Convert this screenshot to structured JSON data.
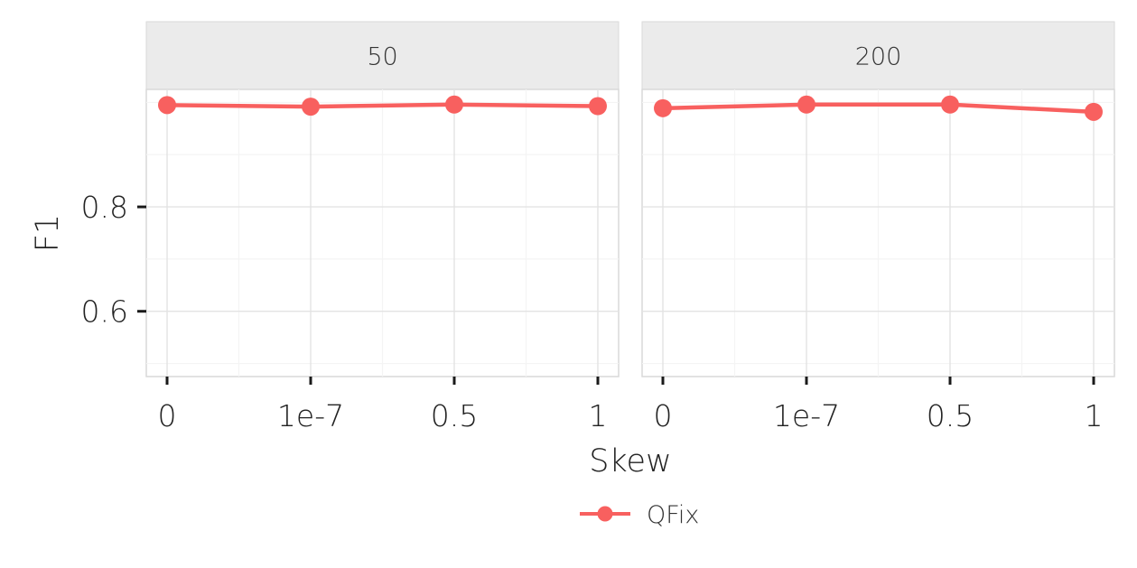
{
  "chart_data": {
    "type": "line",
    "xlabel": "Skew",
    "ylabel": "F1",
    "categories": [
      "0",
      "1e-7",
      "0.5",
      "1"
    ],
    "ylim": [
      0.475,
      1.025
    ],
    "yticks": [
      0.6,
      0.8
    ],
    "yticks_labels": [
      "0.6",
      "0.8"
    ],
    "grid": true,
    "legend_position": "bottom",
    "facets": [
      {
        "label": "50",
        "series": [
          {
            "name": "QFix",
            "values": [
              0.995,
              0.992,
              0.996,
              0.993
            ]
          }
        ]
      },
      {
        "label": "200",
        "series": [
          {
            "name": "QFix",
            "values": [
              0.989,
              0.996,
              0.996,
              0.982
            ]
          }
        ]
      }
    ],
    "series_names": [
      "QFix"
    ],
    "series_color": "#f8605f"
  }
}
